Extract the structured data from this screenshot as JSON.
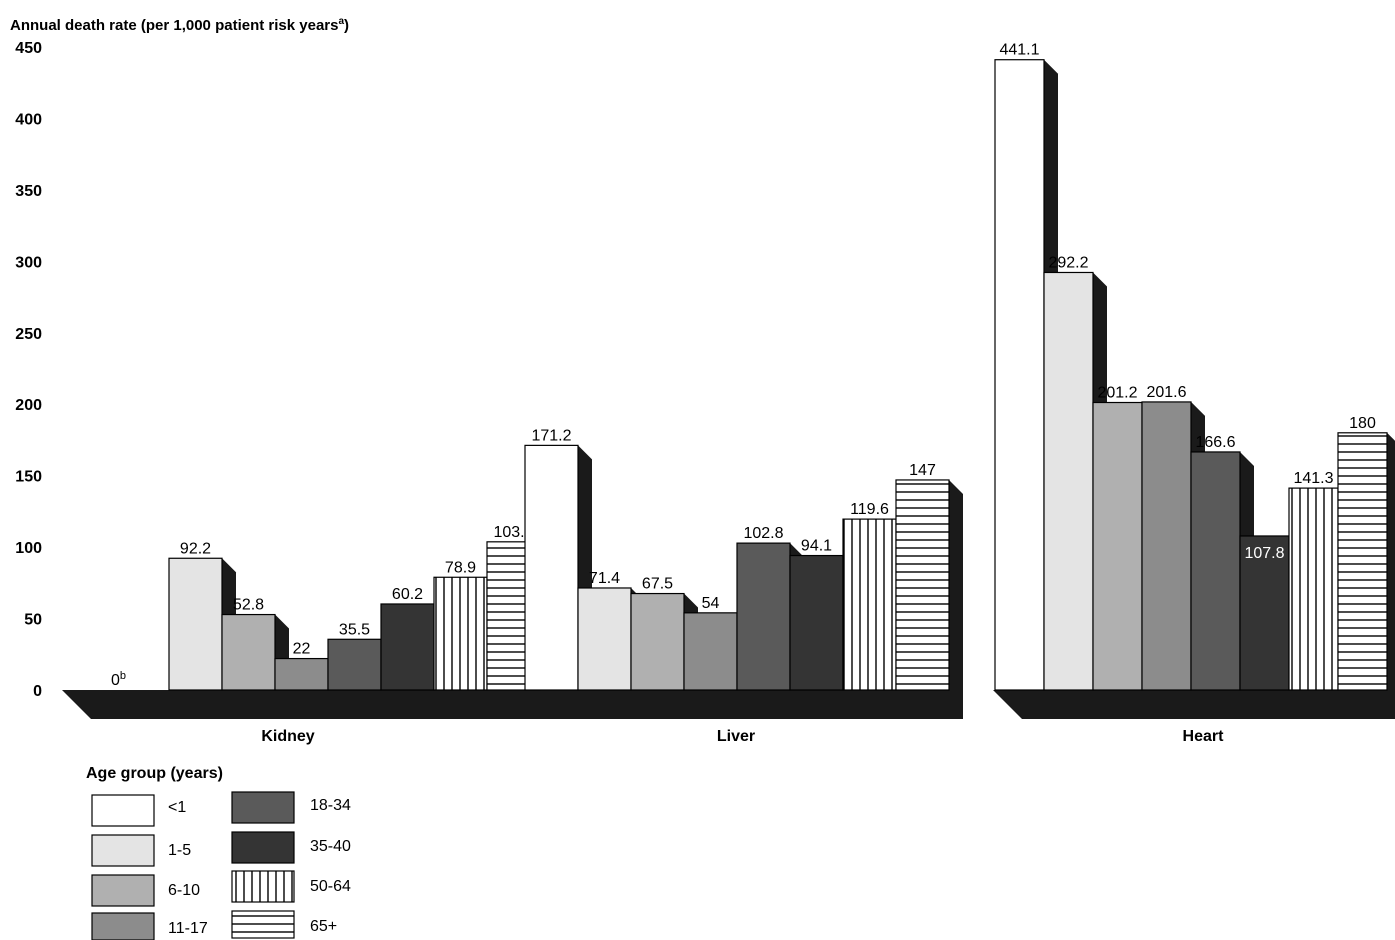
{
  "chart_data": {
    "type": "bar",
    "ylabel_main": "Annual death rate (per 1,000 patient risk years",
    "ylabel_sup": "a",
    "ylabel_close": ")",
    "ylim": [
      0,
      450
    ],
    "yticks": [
      0,
      50,
      100,
      150,
      200,
      250,
      300,
      350,
      400,
      450
    ],
    "categories": [
      "Kidney",
      "Liver",
      "Heart"
    ],
    "legend_title": "Age group (years)",
    "series": [
      {
        "name": "<1",
        "values": [
          0,
          171.2,
          441.1
        ],
        "labels": [
          "0",
          "171.2",
          "441.1"
        ],
        "label_sups": [
          "b",
          "",
          ""
        ]
      },
      {
        "name": "1-5",
        "values": [
          92.2,
          71.4,
          292.2
        ],
        "labels": [
          "92.2",
          "71.4",
          "292.2"
        ]
      },
      {
        "name": "6-10",
        "values": [
          52.8,
          67.5,
          201.2
        ],
        "labels": [
          "52.8",
          "67.5",
          "201.2"
        ]
      },
      {
        "name": "11-17",
        "values": [
          22,
          54,
          201.6
        ],
        "labels": [
          "22",
          "54",
          "201.6"
        ]
      },
      {
        "name": "18-34",
        "values": [
          35.5,
          102.8,
          166.6
        ],
        "labels": [
          "35.5",
          "102.8",
          "166.6"
        ]
      },
      {
        "name": "35-40",
        "values": [
          60.2,
          94.1,
          107.8
        ],
        "labels": [
          "60.2",
          "94.1",
          "107.8"
        ]
      },
      {
        "name": "50-64",
        "values": [
          78.9,
          119.6,
          141.3
        ],
        "labels": [
          "78.9",
          "119.6",
          "141.3"
        ]
      },
      {
        "name": "65+",
        "values": [
          103.7,
          147,
          180
        ],
        "labels": [
          "103.7",
          "147",
          "180"
        ]
      }
    ]
  },
  "colors": {
    "series": [
      "#ffffff",
      "#e4e4e4",
      "#b0b0b0",
      "#8c8c8c",
      "#5a5a5a",
      "#343434",
      "#ffffff",
      "#ffffff"
    ],
    "patterns": [
      "solid",
      "solid",
      "solid",
      "solid",
      "solid",
      "solid",
      "vertical-lines",
      "horizontal-lines"
    ],
    "shadow": "#1a1a1a",
    "floor": "#1a1a1a"
  }
}
